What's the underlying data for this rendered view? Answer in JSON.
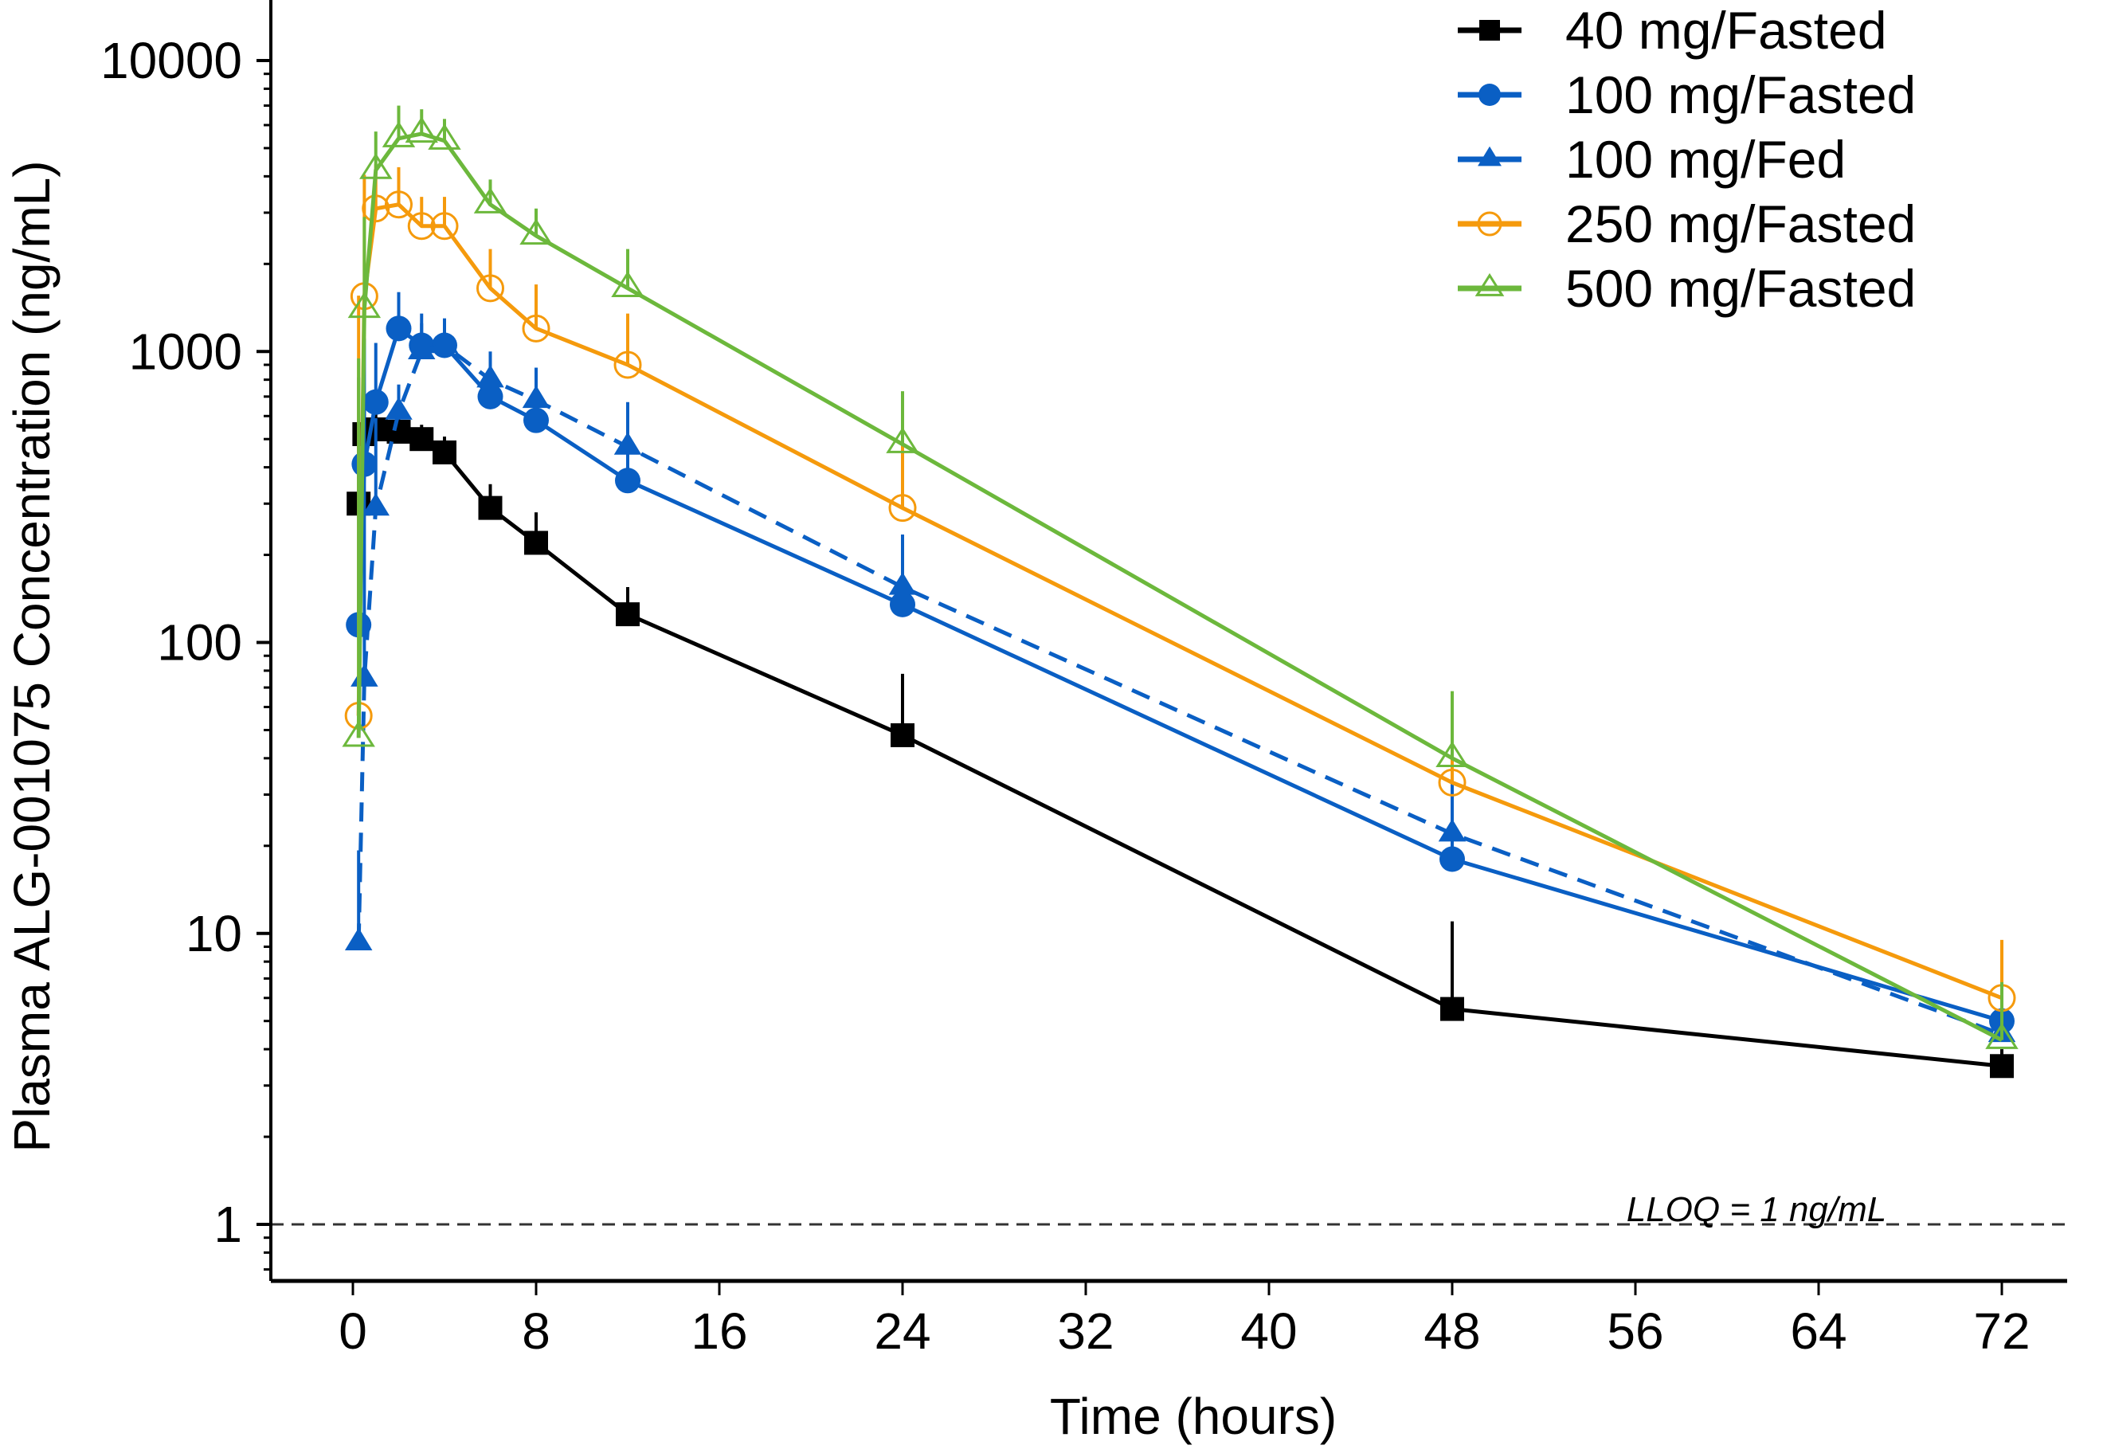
{
  "chart_data": {
    "type": "line",
    "title": "",
    "xlabel": "Time (hours)",
    "ylabel": "Plasma ALG-001075 Concentration (ng/mL)",
    "yscale": "log",
    "xlim": [
      -4,
      76
    ],
    "ylim": [
      0.65,
      15000
    ],
    "xticks": [
      0,
      8,
      16,
      24,
      32,
      40,
      48,
      56,
      64,
      72
    ],
    "xtick_labels": [
      "0",
      "8",
      "16",
      "24",
      "32",
      "40",
      "48",
      "56",
      "64",
      "72"
    ],
    "yticks": [
      1,
      10,
      100,
      1000,
      10000
    ],
    "ytick_labels": [
      "1",
      "10",
      "100",
      "1000",
      "10000"
    ],
    "grid": false,
    "legend_position": "top-right",
    "reference_line": {
      "y": 1,
      "label": "LLOQ = 1 ng/mL",
      "style": "dashed"
    },
    "series": [
      {
        "name": "40 mg/Fasted",
        "color": "#000000",
        "marker": "square-filled",
        "dash": "solid",
        "x": [
          0.25,
          0.5,
          1,
          2,
          3,
          4,
          6,
          8,
          12,
          24,
          48,
          72
        ],
        "y": [
          300,
          520,
          540,
          530,
          500,
          450,
          290,
          220,
          125,
          48,
          5.5,
          3.5
        ],
        "err": [
          200,
          130,
          80,
          60,
          60,
          60,
          60,
          60,
          30,
          30,
          5.5,
          0.5
        ]
      },
      {
        "name": "100 mg/Fasted",
        "color": "#0a5fc4",
        "marker": "circle-filled",
        "dash": "solid",
        "x": [
          0.25,
          0.5,
          1,
          2,
          3,
          4,
          6,
          8,
          12,
          24,
          48,
          72
        ],
        "y": [
          115,
          410,
          670,
          1200,
          1050,
          1050,
          700,
          580,
          360,
          135,
          18,
          5
        ],
        "err": [
          700,
          700,
          400,
          400,
          200,
          200,
          150,
          150,
          120,
          90,
          12,
          3
        ]
      },
      {
        "name": "100 mg/Fed",
        "color": "#0a5fc4",
        "marker": "triangle-filled",
        "dash": "dashed",
        "x": [
          0.25,
          0.5,
          1,
          2,
          3,
          4,
          6,
          8,
          12,
          24,
          48,
          72
        ],
        "y": [
          9.3,
          75,
          290,
          620,
          1000,
          1050,
          800,
          680,
          470,
          155,
          22,
          4.5
        ],
        "err": [
          10,
          300,
          300,
          150,
          350,
          250,
          200,
          200,
          200,
          80,
          12,
          3
        ]
      },
      {
        "name": "250 mg/Fasted",
        "color": "#f59a0c",
        "marker": "circle-open",
        "dash": "solid",
        "x": [
          0.25,
          0.5,
          1,
          2,
          3,
          4,
          6,
          8,
          12,
          24,
          48,
          72
        ],
        "y": [
          56,
          1550,
          3100,
          3200,
          2700,
          2700,
          1650,
          1200,
          900,
          290,
          33,
          6
        ],
        "err": [
          1500,
          2500,
          1300,
          1100,
          700,
          700,
          600,
          500,
          450,
          250,
          25,
          3.5
        ]
      },
      {
        "name": "500 mg/Fasted",
        "color": "#6cb83c",
        "marker": "triangle-open",
        "dash": "solid",
        "x": [
          0.25,
          0.5,
          1,
          2,
          3,
          4,
          6,
          8,
          12,
          24,
          48,
          72
        ],
        "y": [
          47,
          1400,
          4200,
          5400,
          5600,
          5300,
          3200,
          2500,
          1650,
          480,
          40,
          4.3
        ],
        "err": [
          900,
          1500,
          1500,
          1600,
          1200,
          1000,
          700,
          600,
          600,
          250,
          28,
          2.5
        ]
      }
    ]
  }
}
